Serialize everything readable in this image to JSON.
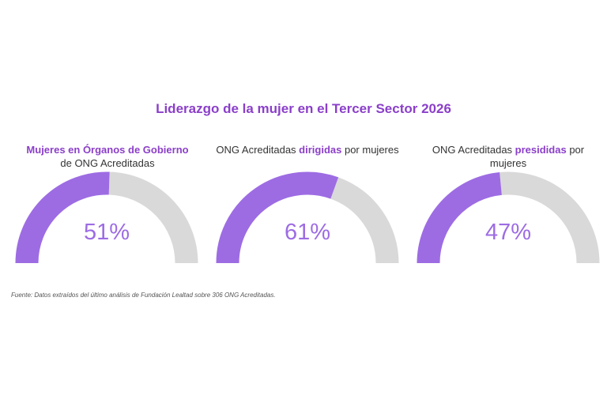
{
  "chart_data": {
    "type": "gauge",
    "title": "Liderazgo de la mujer en el Tercer Sector 2026",
    "range": [
      0,
      100
    ],
    "gauges": [
      {
        "label_parts": [
          "Mujeres en  Órganos de Gobierno",
          " de ONG Acreditadas",
          ""
        ],
        "highlight_index": 0,
        "value": 51,
        "value_label": "51%"
      },
      {
        "label_parts": [
          "ONG Acreditadas ",
          "dirigidas",
          " por mujeres"
        ],
        "highlight_index": 1,
        "value": 61,
        "value_label": "61%"
      },
      {
        "label_parts": [
          "ONG Acreditadas ",
          "presididas",
          " por mujeres"
        ],
        "highlight_index": 1,
        "value": 47,
        "value_label": "47%"
      }
    ],
    "colors": {
      "fill": "#9d6ce3",
      "track": "#d9d9d9",
      "title": "#8b3fc9",
      "value_text": "#9d6ce3"
    }
  },
  "footnote": "Fuente: Datos extraídos del último análisis de Fundación Lealtad sobre 306 ONG Acreditadas."
}
